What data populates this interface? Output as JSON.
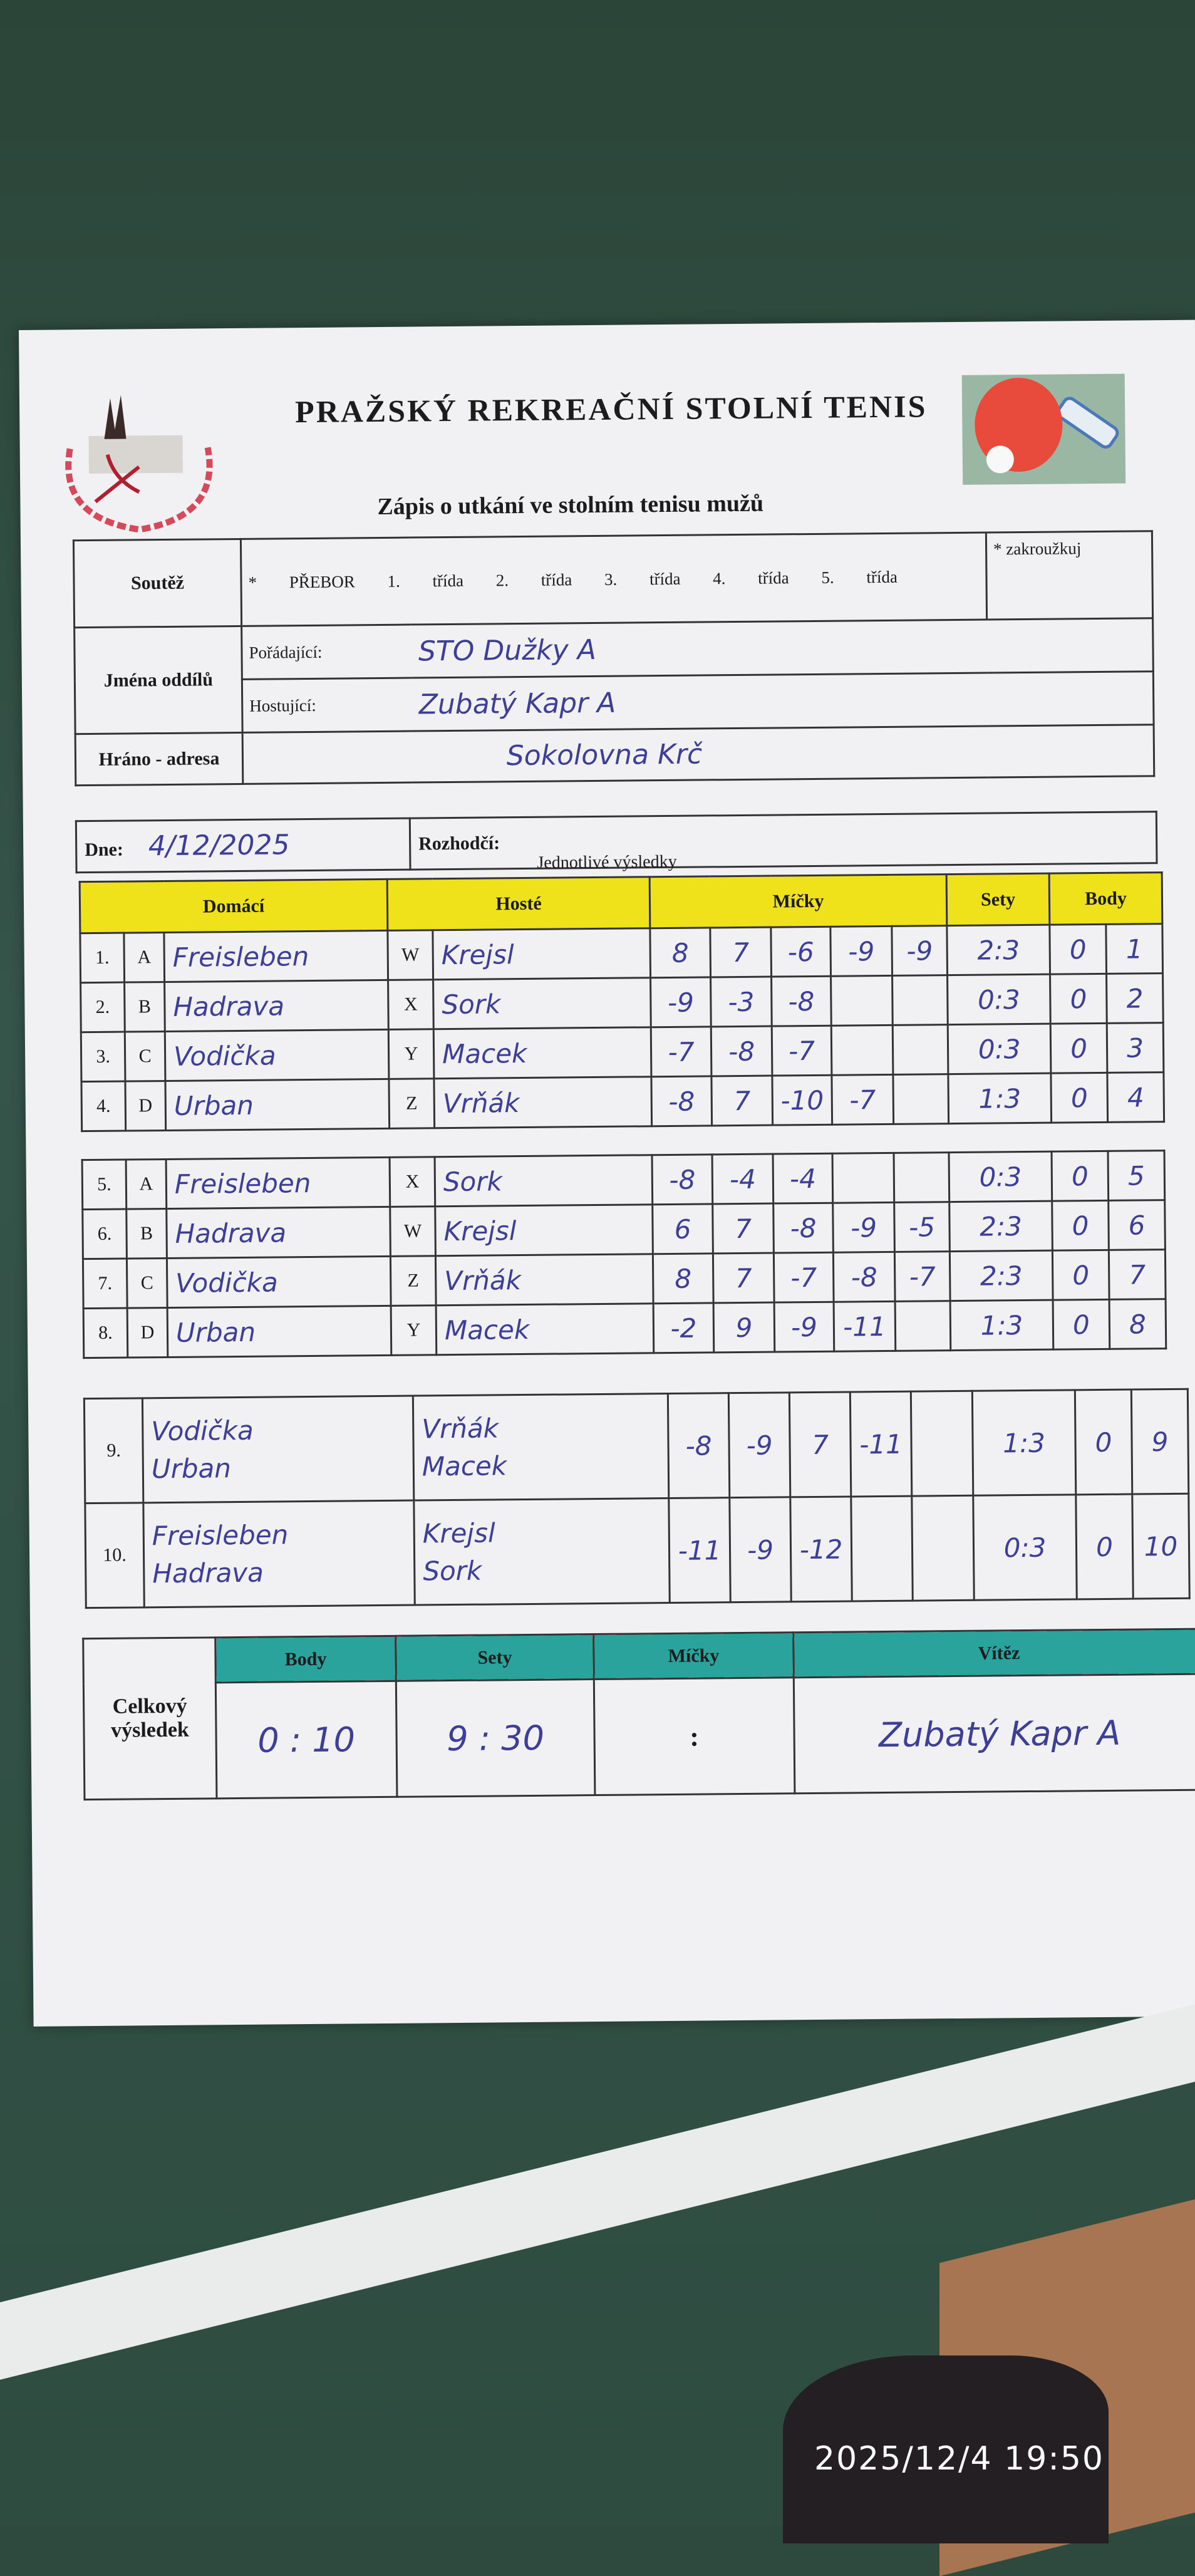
{
  "header": {
    "title": "PRAŽSKÝ REKREAČNÍ STOLNÍ TENIS",
    "subtitle": "Zápis o utkání ve stolním tenisu mužů",
    "logo_text": "PRAŽSKÝ REKREAČNÍ STOLNÍ TENIS"
  },
  "info": {
    "competition_label": "Soutěž",
    "competition_options": "* PŘEBOR 1. třída 2. třída 3. třída 4. třída 5. třída",
    "circled_option": "PŘEBOR",
    "circle_note": "* zakroužkuj",
    "clubs_label": "Jména oddílů",
    "organizer_label": "Pořádající:",
    "organizer_value": "STO Dužky A",
    "guest_label": "Hostující:",
    "guest_value": "Zubatý Kapr A",
    "venue_label": "Hráno - adresa",
    "venue_value": "Sokolovna Krč",
    "date_label": "Dne:",
    "date_value": "4/12/2025",
    "referee_label": "Rozhodčí:",
    "referee_value": ""
  },
  "results": {
    "section_title": "Jednotlivé výsledky",
    "headers": {
      "home": "Domácí",
      "guest": "Hosté",
      "balls": "Míčky",
      "sets": "Sety",
      "points": "Body"
    },
    "singles_block1": [
      {
        "no": "1.",
        "hl": "A",
        "home": "Freisleben",
        "gl": "W",
        "guest": "Krejsl",
        "balls": [
          "8",
          "7",
          "-6",
          "-9",
          "-9"
        ],
        "sets": "2:3",
        "points": [
          "0",
          "1"
        ]
      },
      {
        "no": "2.",
        "hl": "B",
        "home": "Hadrava",
        "gl": "X",
        "guest": "Sork",
        "balls": [
          "-9",
          "-3",
          "-8",
          "",
          ""
        ],
        "sets": "0:3",
        "points": [
          "0",
          "2"
        ]
      },
      {
        "no": "3.",
        "hl": "C",
        "home": "Vodička",
        "gl": "Y",
        "guest": "Macek",
        "balls": [
          "-7",
          "-8",
          "-7",
          "",
          ""
        ],
        "sets": "0:3",
        "points": [
          "0",
          "3"
        ]
      },
      {
        "no": "4.",
        "hl": "D",
        "home": "Urban",
        "gl": "Z",
        "guest": "Vrňák",
        "balls": [
          "-8",
          "7",
          "-10",
          "-7",
          ""
        ],
        "sets": "1:3",
        "points": [
          "0",
          "4"
        ]
      }
    ],
    "singles_block2": [
      {
        "no": "5.",
        "hl": "A",
        "home": "Freisleben",
        "gl": "X",
        "guest": "Sork",
        "balls": [
          "-8",
          "-4",
          "-4",
          "",
          ""
        ],
        "sets": "0:3",
        "points": [
          "0",
          "5"
        ]
      },
      {
        "no": "6.",
        "hl": "B",
        "home": "Hadrava",
        "gl": "W",
        "guest": "Krejsl",
        "balls": [
          "6",
          "7",
          "-8",
          "-9",
          "-5"
        ],
        "sets": "2:3",
        "points": [
          "0",
          "6"
        ]
      },
      {
        "no": "7.",
        "hl": "C",
        "home": "Vodička",
        "gl": "Z",
        "guest": "Vrňák",
        "balls": [
          "8",
          "7",
          "-7",
          "-8",
          "-7"
        ],
        "sets": "2:3",
        "points": [
          "0",
          "7"
        ]
      },
      {
        "no": "8.",
        "hl": "D",
        "home": "Urban",
        "gl": "Y",
        "guest": "Macek",
        "balls": [
          "-2",
          "9",
          "-9",
          "-11",
          ""
        ],
        "sets": "1:3",
        "points": [
          "0",
          "8"
        ]
      }
    ],
    "doubles": [
      {
        "no": "9.",
        "home": "Vodička\nUrban",
        "guest": "Vrňák\nMacek",
        "balls": [
          "-8",
          "-9",
          "7",
          "-11",
          ""
        ],
        "sets": "1:3",
        "points": [
          "0",
          "9"
        ]
      },
      {
        "no": "10.",
        "home": "Freisleben\nHadrava",
        "guest": "Krejsl\nSork",
        "balls": [
          "-11",
          "-9",
          "-12",
          "",
          ""
        ],
        "sets": "0:3",
        "points": [
          "0",
          "10"
        ]
      }
    ]
  },
  "total": {
    "label": "Celkový výsledek",
    "headers": {
      "points": "Body",
      "sets": "Sety",
      "balls": "Míčky",
      "winner": "Vítěz"
    },
    "points": "0 : 10",
    "sets": "9 : 30",
    "balls": ":",
    "winner": "Zubatý Kapr A"
  },
  "photo_timestamp": "2025/12/4 19:50",
  "colors": {
    "yellow_header": "#efe21b",
    "teal_header": "#2aa39c",
    "ink": "#3d3f96",
    "table_bg": "#2e4a3f"
  }
}
